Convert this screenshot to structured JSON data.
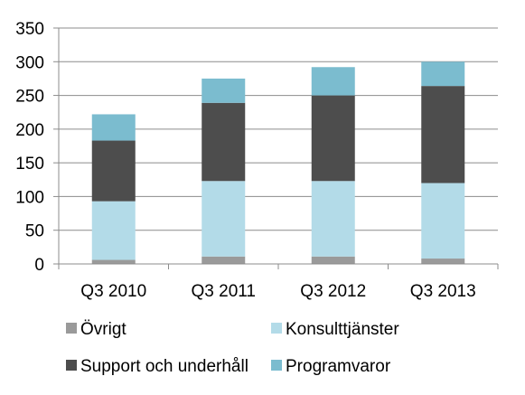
{
  "chart_data": {
    "type": "bar",
    "stacked": true,
    "categories": [
      "Q3 2010",
      "Q3 2011",
      "Q3 2012",
      "Q3 2013"
    ],
    "series": [
      {
        "name": "Övrigt",
        "values": [
          6,
          11,
          11,
          8
        ],
        "color": "#9a9a9a"
      },
      {
        "name": "Konsulttjänster",
        "values": [
          87,
          112,
          112,
          112
        ],
        "color": "#b3dbe8"
      },
      {
        "name": "Support och underhåll",
        "values": [
          90,
          116,
          127,
          144
        ],
        "color": "#4d4d4d"
      },
      {
        "name": "Programvaror",
        "values": [
          39,
          36,
          42,
          36
        ],
        "color": "#7bbccf"
      }
    ],
    "yticks": [
      0,
      50,
      100,
      150,
      200,
      250,
      300,
      350
    ],
    "ylim": [
      0,
      350
    ],
    "grid": true,
    "legend_position": "bottom"
  }
}
